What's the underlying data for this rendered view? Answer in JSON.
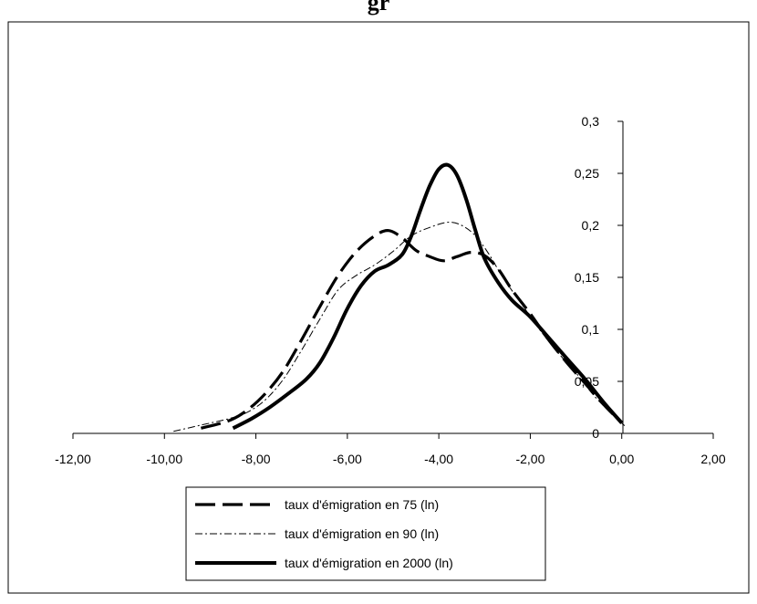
{
  "header_fragment": "gr",
  "chart_data": {
    "type": "line",
    "title": "",
    "xlabel": "",
    "ylabel": "",
    "xlim": [
      -12,
      2
    ],
    "ylim": [
      0,
      0.3
    ],
    "x_ticks": [
      -12,
      -10,
      -8,
      -6,
      -4,
      -2,
      0,
      2
    ],
    "x_tick_labels": [
      "-12,00",
      "-10,00",
      "-8,00",
      "-6,00",
      "-4,00",
      "-2,00",
      "0,00",
      "2,00"
    ],
    "y_ticks": [
      0,
      0.05,
      0.1,
      0.15,
      0.2,
      0.25,
      0.3
    ],
    "y_tick_labels": [
      "0",
      "0,05",
      "0,1",
      "0,15",
      "0,2",
      "0,25",
      "0,3"
    ],
    "grid": false,
    "legend_position": "bottom",
    "series": [
      {
        "name": "taux d'émigration en 75 (ln)",
        "style": "dashed",
        "color": "#000000",
        "points": [
          [
            -9.2,
            0.005
          ],
          [
            -8.6,
            0.012
          ],
          [
            -8.2,
            0.022
          ],
          [
            -7.8,
            0.038
          ],
          [
            -7.4,
            0.06
          ],
          [
            -7.0,
            0.09
          ],
          [
            -6.6,
            0.122
          ],
          [
            -6.2,
            0.152
          ],
          [
            -5.8,
            0.175
          ],
          [
            -5.4,
            0.19
          ],
          [
            -5.1,
            0.195
          ],
          [
            -4.8,
            0.188
          ],
          [
            -4.5,
            0.176
          ],
          [
            -4.2,
            0.17
          ],
          [
            -3.9,
            0.166
          ],
          [
            -3.6,
            0.17
          ],
          [
            -3.3,
            0.174
          ],
          [
            -3.0,
            0.171
          ],
          [
            -2.7,
            0.158
          ],
          [
            -2.4,
            0.138
          ],
          [
            -2.0,
            0.115
          ],
          [
            -1.6,
            0.09
          ],
          [
            -1.2,
            0.068
          ],
          [
            -0.8,
            0.048
          ],
          [
            -0.4,
            0.028
          ],
          [
            0.0,
            0.01
          ]
        ]
      },
      {
        "name": "taux d'émigration en 90 (ln)",
        "style": "dash-dot",
        "color": "#000000",
        "points": [
          [
            -9.8,
            0.002
          ],
          [
            -9.2,
            0.008
          ],
          [
            -8.6,
            0.014
          ],
          [
            -8.2,
            0.02
          ],
          [
            -7.8,
            0.032
          ],
          [
            -7.4,
            0.052
          ],
          [
            -7.0,
            0.08
          ],
          [
            -6.6,
            0.11
          ],
          [
            -6.2,
            0.138
          ],
          [
            -5.8,
            0.152
          ],
          [
            -5.4,
            0.162
          ],
          [
            -5.0,
            0.175
          ],
          [
            -4.6,
            0.19
          ],
          [
            -4.2,
            0.198
          ],
          [
            -3.8,
            0.203
          ],
          [
            -3.5,
            0.2
          ],
          [
            -3.2,
            0.19
          ],
          [
            -2.9,
            0.172
          ],
          [
            -2.6,
            0.15
          ],
          [
            -2.2,
            0.125
          ],
          [
            -1.8,
            0.1
          ],
          [
            -1.4,
            0.078
          ],
          [
            -1.0,
            0.058
          ],
          [
            -0.6,
            0.036
          ],
          [
            -0.2,
            0.018
          ],
          [
            0.1,
            0.006
          ]
        ]
      },
      {
        "name": "taux d'émigration en 2000 (ln)",
        "style": "solid",
        "color": "#000000",
        "points": [
          [
            -8.5,
            0.005
          ],
          [
            -8.1,
            0.014
          ],
          [
            -7.7,
            0.025
          ],
          [
            -7.3,
            0.038
          ],
          [
            -6.9,
            0.052
          ],
          [
            -6.6,
            0.068
          ],
          [
            -6.3,
            0.092
          ],
          [
            -6.0,
            0.12
          ],
          [
            -5.7,
            0.142
          ],
          [
            -5.4,
            0.156
          ],
          [
            -5.1,
            0.162
          ],
          [
            -4.8,
            0.172
          ],
          [
            -4.6,
            0.19
          ],
          [
            -4.4,
            0.215
          ],
          [
            -4.2,
            0.238
          ],
          [
            -4.0,
            0.254
          ],
          [
            -3.8,
            0.258
          ],
          [
            -3.6,
            0.248
          ],
          [
            -3.4,
            0.225
          ],
          [
            -3.2,
            0.195
          ],
          [
            -3.0,
            0.168
          ],
          [
            -2.7,
            0.145
          ],
          [
            -2.4,
            0.128
          ],
          [
            -2.0,
            0.112
          ],
          [
            -1.6,
            0.092
          ],
          [
            -1.2,
            0.072
          ],
          [
            -0.8,
            0.052
          ],
          [
            -0.4,
            0.03
          ],
          [
            0.0,
            0.01
          ]
        ]
      }
    ]
  }
}
